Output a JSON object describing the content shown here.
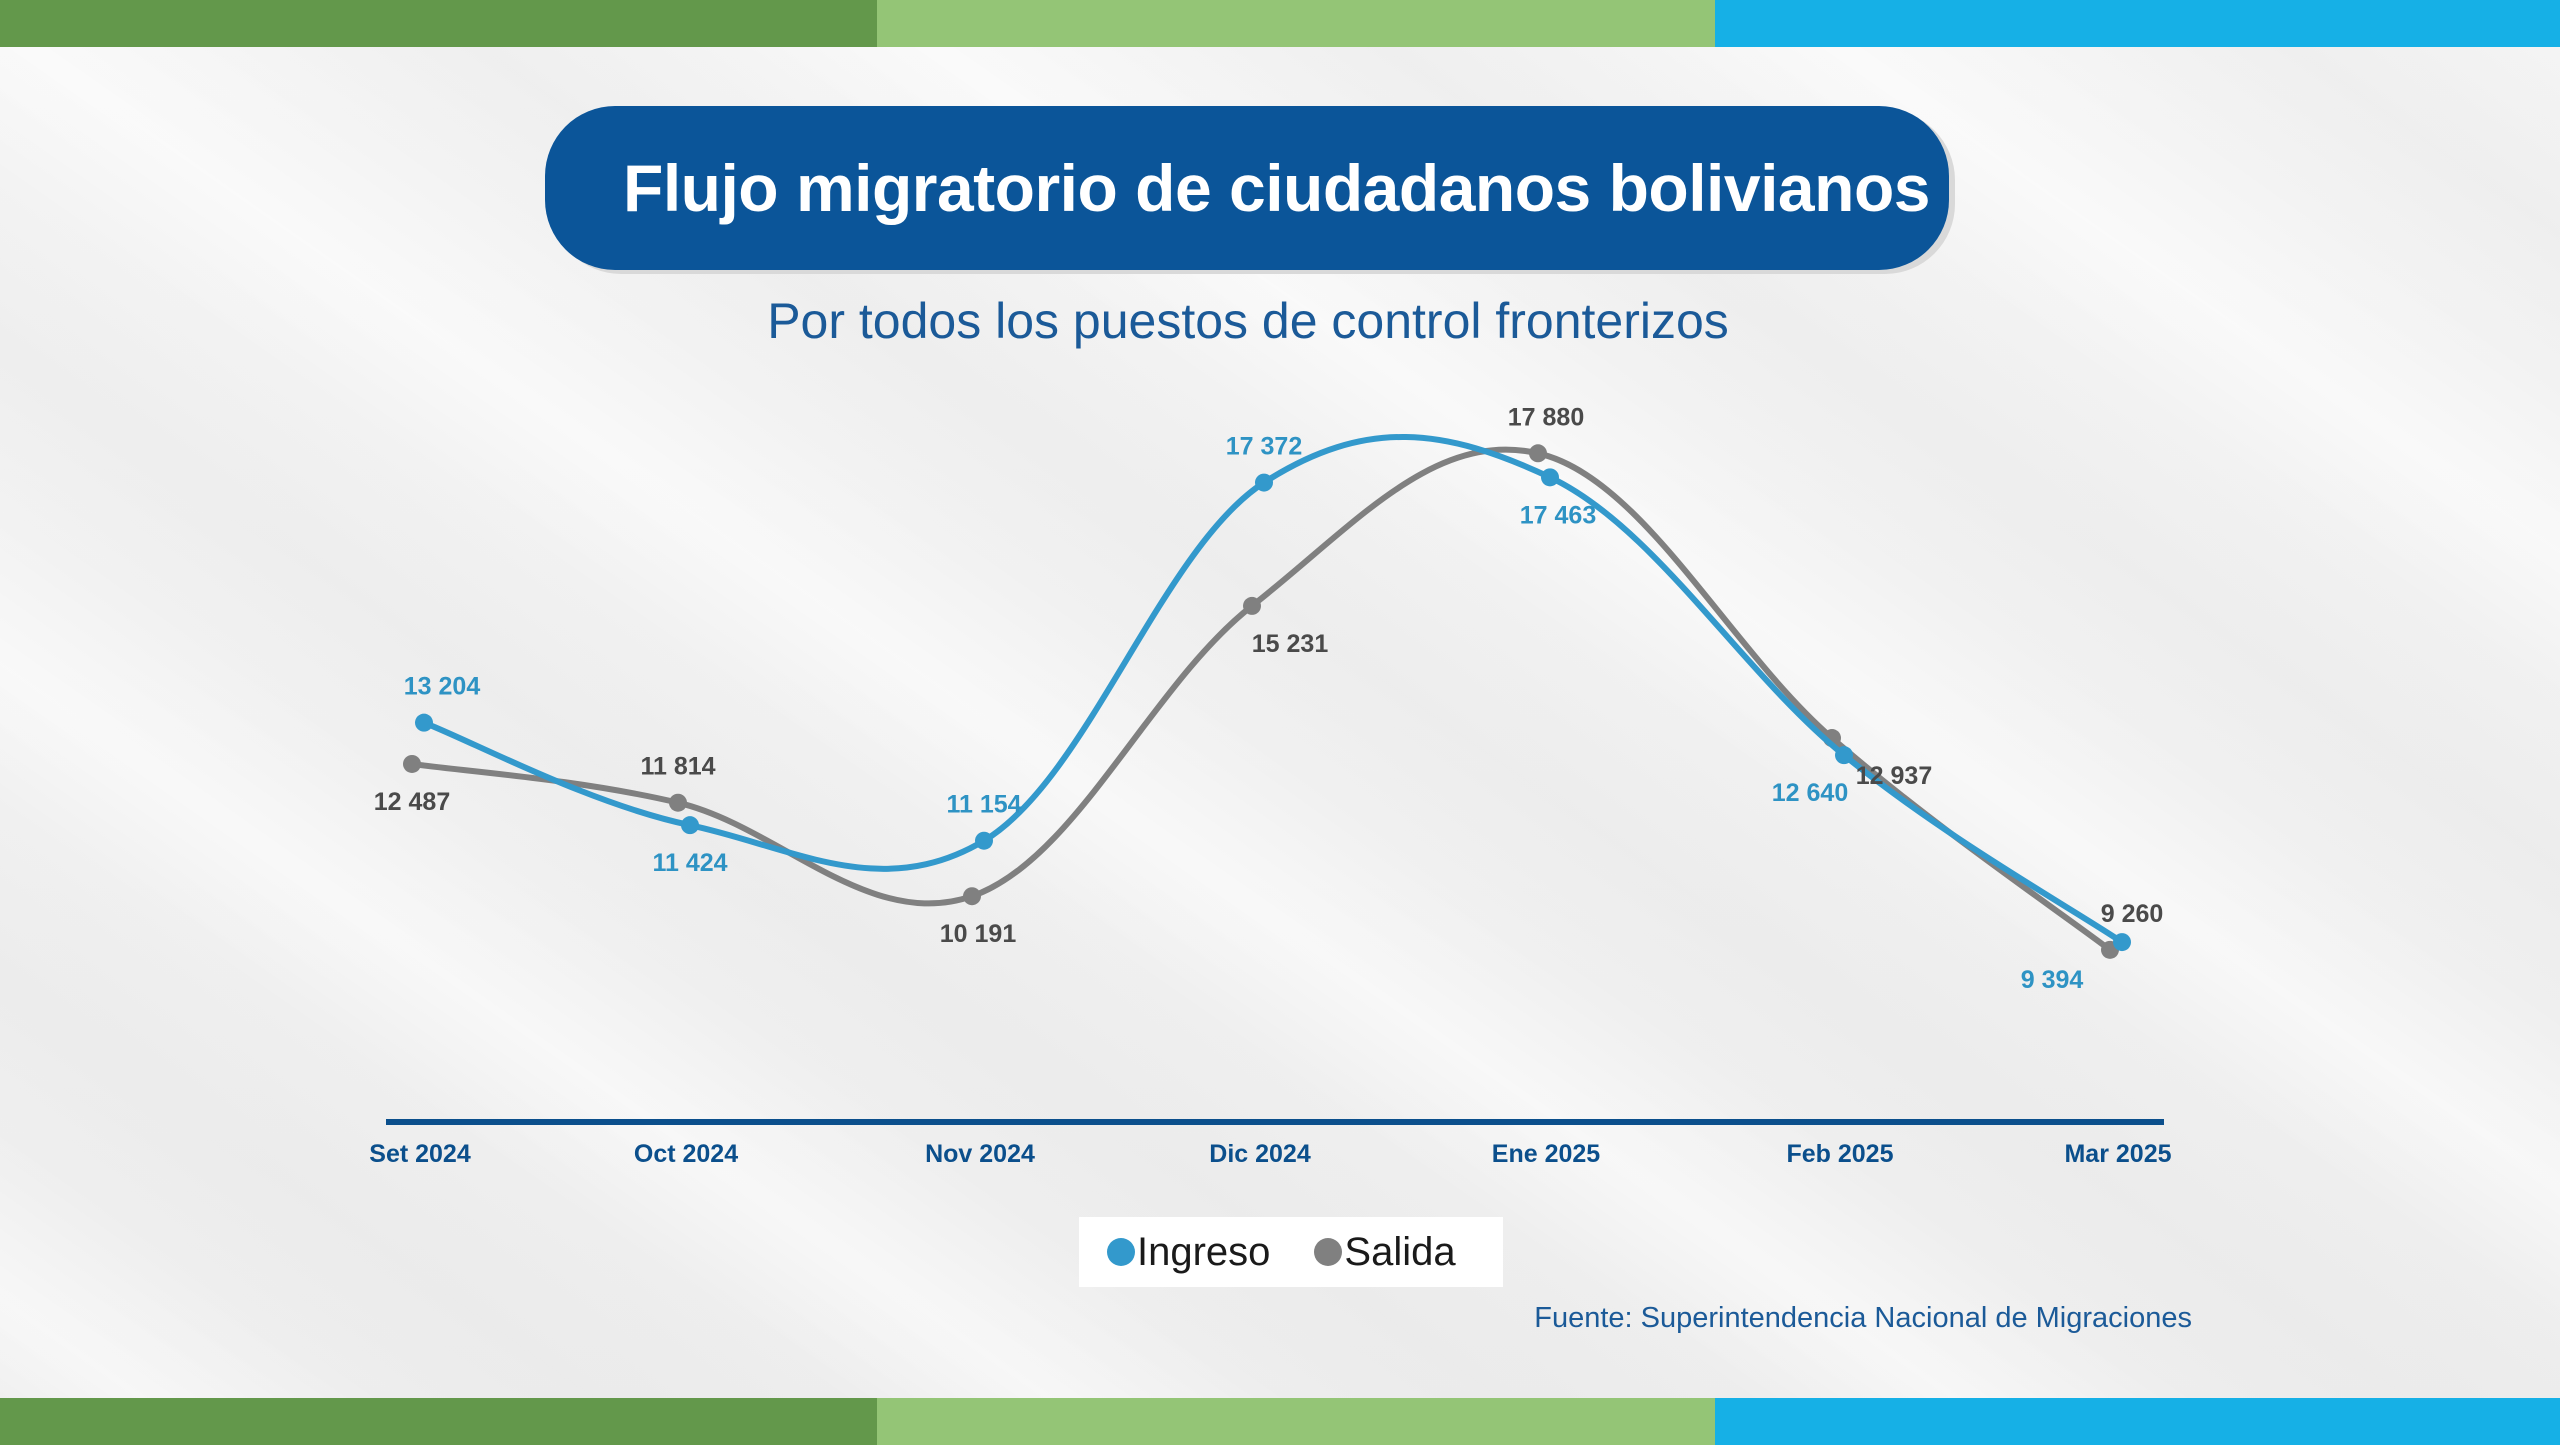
{
  "colors": {
    "stripe_dark_green": "#63984b",
    "stripe_light_green": "#94c576",
    "stripe_blue": "#16b0e6",
    "title_bg": "#0b5599",
    "axis": "#0b4f8c",
    "ingreso": "#3399cc",
    "salida": "#808080"
  },
  "title": "Flujo migratorio de ciudadanos bolivianos",
  "subtitle": "Por todos los puestos de control fronterizos",
  "source": "Fuente: Superintendencia Nacional de Migraciones",
  "legend": [
    {
      "label": "Ingreso",
      "color": "#3399cc"
    },
    {
      "label": "Salida",
      "color": "#808080"
    }
  ],
  "chart_data": {
    "type": "line",
    "title": "Flujo migratorio de ciudadanos bolivianos",
    "subtitle": "Por todos los puestos de control fronterizos",
    "categories": [
      "Set 2024",
      "Oct 2024",
      "Nov 2024",
      "Dic 2024",
      "Ene 2025",
      "Feb 2025",
      "Mar 2025"
    ],
    "series": [
      {
        "name": "Ingreso",
        "values": [
          13204,
          11424,
          11154,
          17372,
          17463,
          12640,
          9394
        ],
        "labels": [
          "13 204",
          "11 424",
          "11 154",
          "17 372",
          "17 463",
          "12 640",
          "9 394"
        ],
        "color": "#3399cc"
      },
      {
        "name": "Salida",
        "values": [
          12487,
          11814,
          10191,
          15231,
          17880,
          12937,
          9260
        ],
        "labels": [
          "12 487",
          "11 814",
          "10 191",
          "15 231",
          "17 880",
          "12 937",
          "9 260"
        ],
        "color": "#808080"
      }
    ],
    "legend_position": "bottom-center",
    "grid": false
  }
}
